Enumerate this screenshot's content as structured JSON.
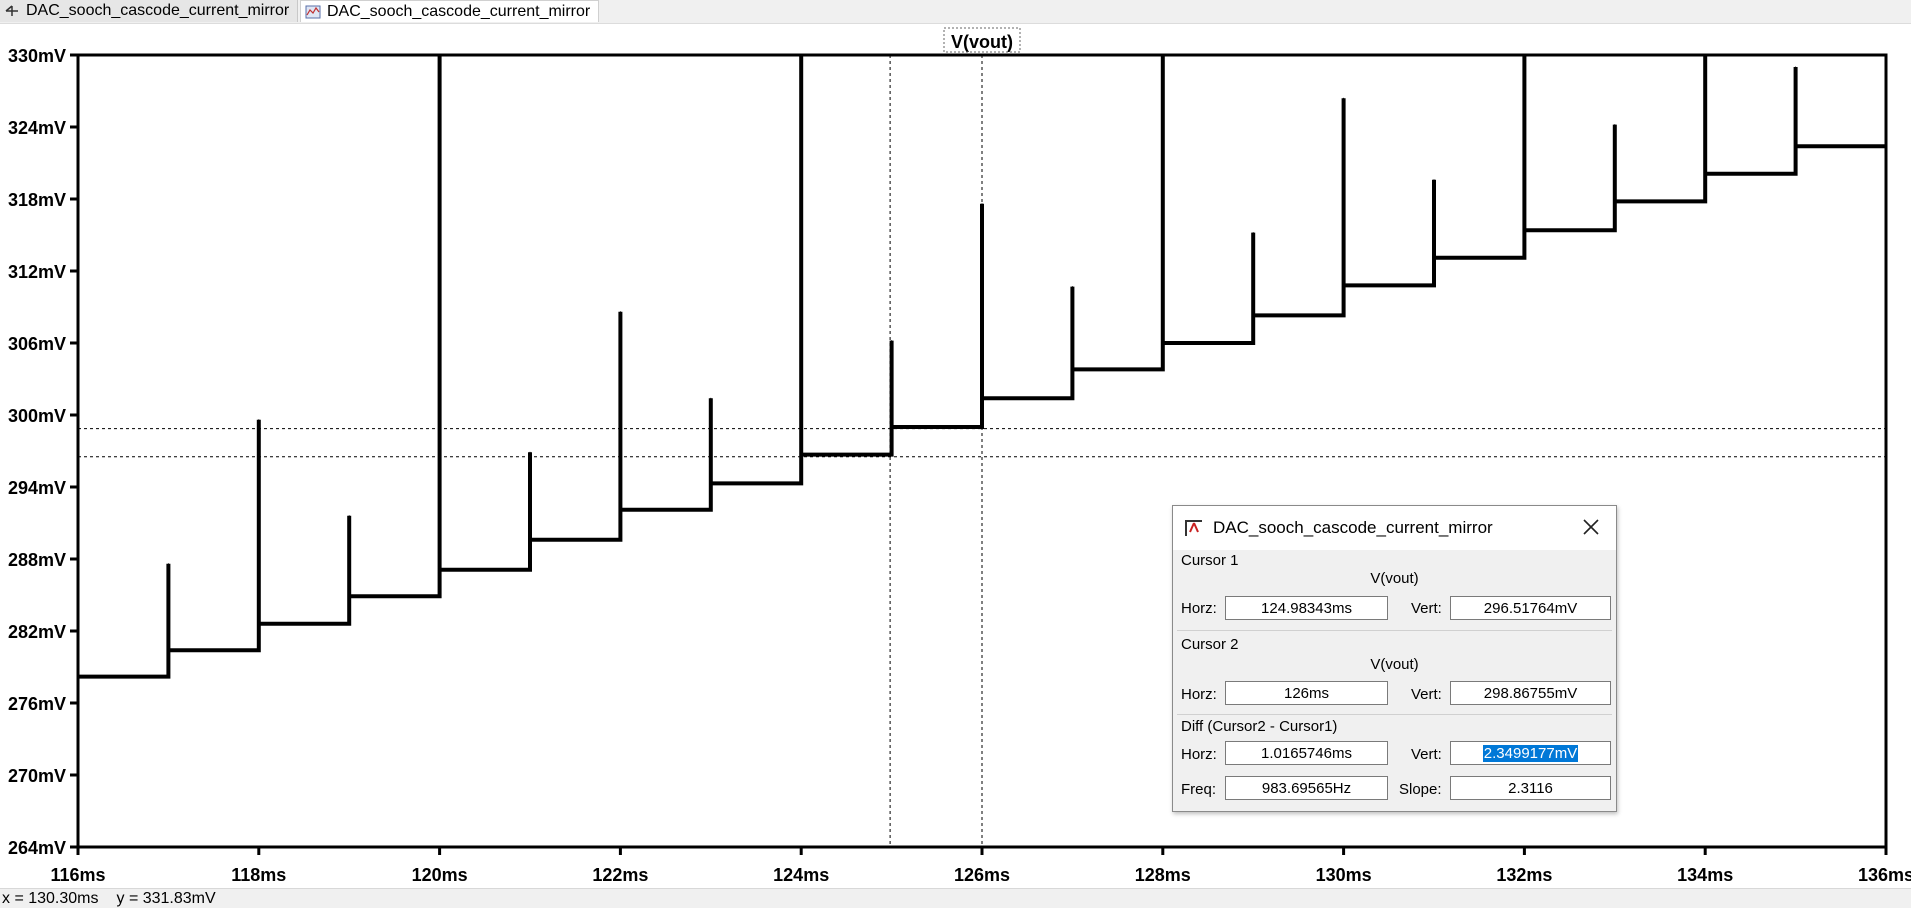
{
  "tabs": [
    {
      "label": "DAC_sooch_cascode_current_mirror",
      "icon": "schematic-icon"
    },
    {
      "label": "DAC_sooch_cascode_current_mirror",
      "icon": "waveform-icon"
    }
  ],
  "chart_data": {
    "type": "line",
    "title": "V(vout)",
    "xlabel": "",
    "ylabel": "",
    "xlim": [
      116,
      136
    ],
    "ylim": [
      264,
      330
    ],
    "x_unit": "ms",
    "y_unit": "mV",
    "x_ticks": [
      "116ms",
      "118ms",
      "120ms",
      "122ms",
      "124ms",
      "126ms",
      "128ms",
      "130ms",
      "132ms",
      "134ms",
      "136ms"
    ],
    "y_ticks": [
      "330mV",
      "324mV",
      "318mV",
      "312mV",
      "306mV",
      "300mV",
      "294mV",
      "288mV",
      "282mV",
      "276mV",
      "270mV",
      "264mV"
    ],
    "grid": false,
    "series": [
      {
        "name": "V(vout)",
        "x": [
          116,
          117,
          117,
          117,
          117,
          118,
          118,
          118,
          118,
          119,
          119,
          119,
          119,
          120,
          120,
          120,
          120,
          121,
          121,
          121,
          121,
          122,
          122,
          122,
          122,
          123,
          123,
          123,
          123,
          124,
          124,
          124,
          124,
          125,
          125,
          125,
          125,
          126,
          126,
          126,
          126,
          127,
          127,
          127,
          127,
          128,
          128,
          128,
          128,
          129,
          129,
          129,
          129,
          130,
          130,
          130,
          130,
          131,
          131,
          131,
          131,
          132,
          132,
          132,
          132,
          133,
          133,
          133,
          133,
          134,
          134,
          134,
          134,
          135,
          135,
          135,
          135,
          136
        ],
        "y": [
          278.2,
          278.2,
          287.6,
          280.4,
          280.4,
          280.4,
          299.6,
          282.6,
          282.6,
          282.6,
          291.6,
          284.9,
          284.9,
          284.9,
          330,
          287.3,
          287.1,
          287.1,
          296.9,
          289.6,
          289.6,
          289.6,
          308.6,
          292.1,
          292.1,
          292.1,
          301.4,
          294.3,
          294.3,
          294.3,
          330,
          296.7,
          296.7,
          296.7,
          306.2,
          299.0,
          299.0,
          299.0,
          317.6,
          301.4,
          301.4,
          301.4,
          310.7,
          303.8,
          303.8,
          303.8,
          330,
          306.5,
          306.0,
          306.0,
          315.2,
          308.3,
          308.3,
          308.3,
          326.4,
          310.8,
          310.8,
          310.8,
          319.6,
          313.1,
          313.1,
          313.1,
          330,
          315.4,
          315.4,
          315.4,
          324.2,
          317.8,
          317.8,
          317.8,
          330,
          320.1,
          320.1,
          320.1,
          329.0,
          322.4,
          322.4,
          322.4
        ]
      }
    ],
    "cursors": [
      {
        "x": 124.98343,
        "y": 296.51764
      },
      {
        "x": 126,
        "y": 298.86755
      }
    ]
  },
  "dialog": {
    "title": "DAC_sooch_cascode_current_mirror",
    "cursor1": {
      "group": "Cursor 1",
      "trace": "V(vout)",
      "horz_label": "Horz:",
      "horz": "124.98343ms",
      "vert_label": "Vert:",
      "vert": "296.51764mV"
    },
    "cursor2": {
      "group": "Cursor 2",
      "trace": "V(vout)",
      "horz_label": "Horz:",
      "horz": "126ms",
      "vert_label": "Vert:",
      "vert": "298.86755mV"
    },
    "diff": {
      "group": "Diff (Cursor2 - Cursor1)",
      "horz_label": "Horz:",
      "horz": "1.0165746ms",
      "vert_label": "Vert:",
      "vert": "2.3499177mV",
      "freq_label": "Freq:",
      "freq": "983.69565Hz",
      "slope_label": "Slope:",
      "slope": "2.3116"
    }
  },
  "status": {
    "x": "x = 130.30ms",
    "y": "y = 331.83mV"
  }
}
